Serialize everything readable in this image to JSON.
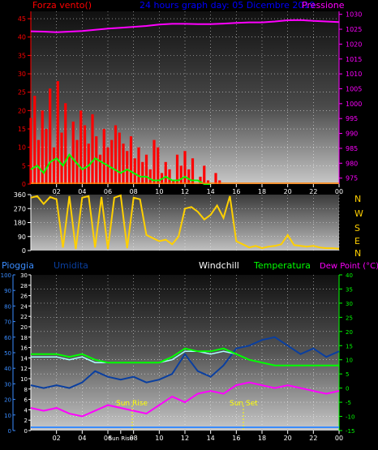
{
  "colors": {
    "red": "#ff0000",
    "blue": "#0000ff",
    "magenta": "#ff00ff",
    "yellow": "#ffd000",
    "green": "#00ff00",
    "white": "#ffffff",
    "navy": "#0a3fa0",
    "lightblue": "#3a8cff",
    "cyan": "#aaffff",
    "orange": "#ff8000"
  },
  "header": {
    "left": "Forza vento()",
    "center": "24 hours graph day: 05 Dicembre 2019",
    "right": "Pressione"
  },
  "middle_right_labels": [
    "N",
    "W",
    "S",
    "E",
    "N"
  ],
  "bottom_header": {
    "pioggia": "Pioggia",
    "umidita": "Umidita",
    "windchill": "Windchill",
    "temperatura": "Temperatura",
    "dewpoint": "Dew Point (°C)"
  },
  "sun": {
    "rise": "Sun Rise",
    "set": "Sun Set"
  },
  "chart_data": [
    {
      "type": "line",
      "title": "24 hours graph day: 05 Dicembre 2019",
      "x_ticks": [
        "02",
        "04",
        "06",
        "08",
        "10",
        "12",
        "14",
        "16",
        "18",
        "20",
        "22",
        "00"
      ],
      "left_axis": {
        "label": "Forza vento()",
        "ticks": [
          0,
          5,
          10,
          15,
          20,
          25,
          30,
          35,
          40,
          45
        ],
        "ylim": [
          0,
          47
        ]
      },
      "right_axis": {
        "label": "Pressione",
        "ticks": [
          975,
          980,
          985,
          990,
          995,
          1000,
          1005,
          1010,
          1015,
          1020,
          1025,
          1030
        ],
        "ylim": [
          973,
          1031
        ]
      },
      "series": [
        {
          "name": "Pressione",
          "axis": "right",
          "x": [
            0,
            1,
            2,
            3,
            4,
            5,
            6,
            7,
            8,
            9,
            10,
            11,
            12,
            13,
            14,
            15,
            16,
            17,
            18,
            19,
            20,
            21,
            22,
            23,
            24
          ],
          "values": [
            1024.3,
            1024.2,
            1024.0,
            1024.2,
            1024.4,
            1024.8,
            1025.2,
            1025.5,
            1025.8,
            1026.1,
            1026.6,
            1026.8,
            1026.8,
            1026.7,
            1026.7,
            1026.9,
            1027.1,
            1027.3,
            1027.3,
            1027.6,
            1028.0,
            1028.1,
            1027.8,
            1027.6,
            1027.4
          ]
        },
        {
          "name": "Forza vento",
          "axis": "left",
          "x": [
            0.0,
            0.3,
            0.6,
            0.9,
            1.2,
            1.5,
            1.8,
            2.1,
            2.4,
            2.7,
            3.0,
            3.3,
            3.6,
            3.9,
            4.2,
            4.5,
            4.8,
            5.1,
            5.4,
            5.7,
            6.0,
            6.3,
            6.6,
            6.9,
            7.2,
            7.5,
            7.8,
            8.1,
            8.4,
            8.7,
            9.0,
            9.3,
            9.6,
            9.9,
            10.2,
            10.5,
            10.8,
            11.1,
            11.4,
            11.7,
            12.0,
            12.3,
            12.6,
            12.9,
            13.2,
            13.5,
            13.8,
            14.1,
            14.4,
            14.7,
            15.0
          ],
          "values": [
            18,
            24,
            12,
            20,
            15,
            26,
            10,
            28,
            14,
            22,
            8,
            17,
            12,
            20,
            16,
            11,
            19,
            13,
            8,
            15,
            10,
            12,
            16,
            14,
            11,
            9,
            13,
            7,
            10,
            6,
            8,
            4,
            12,
            10,
            3,
            6,
            4,
            1,
            8,
            5,
            9,
            4,
            7,
            0,
            2,
            5,
            1,
            0,
            3,
            1,
            0
          ]
        },
        {
          "name": "Raffica media",
          "axis": "left",
          "x": [
            0.0,
            0.5,
            1.0,
            1.5,
            2.0,
            2.5,
            3.0,
            3.5,
            4.0,
            4.5,
            5.0,
            5.5,
            6.0,
            6.5,
            7.0,
            7.5,
            8.0,
            8.5,
            9.0,
            9.5,
            10.0,
            10.5,
            11.0,
            11.5,
            12.0,
            12.5,
            13.0,
            13.5,
            14.0
          ],
          "values": [
            4,
            5,
            3,
            6,
            7,
            5,
            8,
            6,
            4,
            5,
            7,
            6,
            5,
            4,
            3,
            4,
            3,
            2,
            2,
            1,
            1,
            2,
            1,
            1,
            2,
            1,
            1,
            0,
            0
          ]
        }
      ]
    },
    {
      "type": "line",
      "title": "",
      "x_ticks": [
        "02",
        "04",
        "06",
        "08",
        "10",
        "12",
        "14",
        "16",
        "18",
        "20",
        "22",
        "00"
      ],
      "left_axis": {
        "ticks": [
          0,
          90,
          180,
          270,
          360
        ],
        "ylim": [
          0,
          360
        ]
      },
      "right_labels": [
        "N",
        "W",
        "S",
        "E",
        "N"
      ],
      "series": [
        {
          "name": "Direzione",
          "x": [
            0.0,
            0.5,
            1.0,
            1.5,
            2.0,
            2.5,
            3.0,
            3.5,
            4.0,
            4.5,
            5.0,
            5.5,
            6.0,
            6.5,
            7.0,
            7.5,
            8.0,
            8.5,
            9.0,
            9.5,
            10.0,
            10.5,
            11.0,
            11.5,
            12.0,
            12.5,
            13.0,
            13.5,
            14.0,
            14.5,
            15.0,
            15.5,
            16.0,
            16.5,
            17.0,
            17.5,
            18.0,
            18.5,
            19.0,
            19.5,
            20.0,
            20.5,
            21.0,
            21.5,
            22.0,
            22.5,
            23.0,
            23.5,
            24.0
          ],
          "values": [
            340,
            350,
            300,
            345,
            330,
            20,
            350,
            10,
            340,
            350,
            20,
            345,
            10,
            340,
            355,
            15,
            340,
            330,
            100,
            80,
            60,
            70,
            40,
            90,
            270,
            280,
            250,
            200,
            230,
            290,
            210,
            350,
            60,
            40,
            20,
            30,
            15,
            25,
            30,
            40,
            100,
            35,
            30,
            25,
            30,
            20,
            15,
            15,
            12
          ]
        }
      ]
    },
    {
      "type": "line",
      "title": "",
      "x_ticks": [
        "02",
        "04",
        "06",
        "Sun Rise",
        "08",
        "10",
        "12",
        "14",
        "16",
        "18",
        "20",
        "22",
        "00"
      ],
      "left_axis_1": {
        "label": "Pioggia",
        "ticks": [
          0,
          10,
          20,
          30,
          40,
          50,
          60,
          70,
          80,
          90,
          100
        ]
      },
      "left_axis_2": {
        "label": "Umidita",
        "ticks": [
          0,
          2,
          4,
          6,
          8,
          10,
          12,
          14,
          16,
          18,
          20,
          22,
          24,
          26,
          28,
          30
        ]
      },
      "right_axis": {
        "label": "Temperatura / Dew Point (°C)",
        "ticks": [
          40,
          35,
          30,
          25,
          20,
          15,
          10,
          5,
          0,
          -5,
          -10,
          -15
        ],
        "ylim": [
          -15,
          40
        ]
      },
      "series": [
        {
          "name": "Temperatura",
          "axis": "right",
          "x": [
            0,
            1,
            2,
            3,
            4,
            5,
            6,
            7,
            8,
            9,
            10,
            11,
            12,
            13,
            14,
            15,
            16,
            17,
            18,
            19,
            20,
            21,
            22,
            23,
            24
          ],
          "values": [
            12,
            12,
            12,
            11,
            12,
            10,
            9,
            9,
            9,
            9,
            9,
            11,
            14,
            13,
            13,
            14,
            12,
            10,
            9,
            8,
            8,
            8,
            8,
            8,
            8
          ]
        },
        {
          "name": "Windchill",
          "axis": "right",
          "x": [
            0,
            1,
            2,
            3,
            4,
            5,
            6,
            7,
            8,
            9,
            10,
            11,
            12,
            13,
            14,
            15,
            16,
            17,
            18,
            19,
            20,
            21,
            22,
            23,
            24
          ],
          "values": [
            11,
            11,
            11,
            10,
            11,
            9,
            9,
            9,
            9,
            9,
            9,
            10,
            13,
            13,
            12,
            13,
            12,
            10,
            9,
            8,
            8,
            8,
            8,
            8,
            8
          ]
        },
        {
          "name": "Dew Point",
          "axis": "right",
          "x": [
            0,
            1,
            2,
            3,
            4,
            5,
            6,
            7,
            8,
            9,
            10,
            11,
            12,
            13,
            14,
            15,
            16,
            17,
            18,
            19,
            20,
            21,
            22,
            23,
            24
          ],
          "values": [
            -7,
            -8,
            -7,
            -9,
            -10,
            -8,
            -6,
            -7,
            -8,
            -9,
            -6,
            -3,
            -5,
            -2,
            -1,
            -2,
            1,
            2,
            1,
            0,
            1,
            0,
            -1,
            -2,
            -1
          ]
        },
        {
          "name": "Umidita",
          "axis": "right",
          "x": [
            0,
            1,
            2,
            3,
            4,
            5,
            6,
            7,
            8,
            9,
            10,
            11,
            12,
            13,
            14,
            15,
            16,
            17,
            18,
            19,
            20,
            21,
            22,
            23,
            24
          ],
          "values": [
            1,
            0,
            1,
            0,
            2,
            6,
            4,
            3,
            4,
            2,
            3,
            5,
            12,
            6,
            4,
            8,
            14,
            15,
            17,
            18,
            15,
            12,
            14,
            11,
            13
          ]
        },
        {
          "name": "Pioggia",
          "axis": "left",
          "x": [
            0,
            24
          ],
          "values": [
            0,
            0
          ]
        }
      ]
    }
  ]
}
